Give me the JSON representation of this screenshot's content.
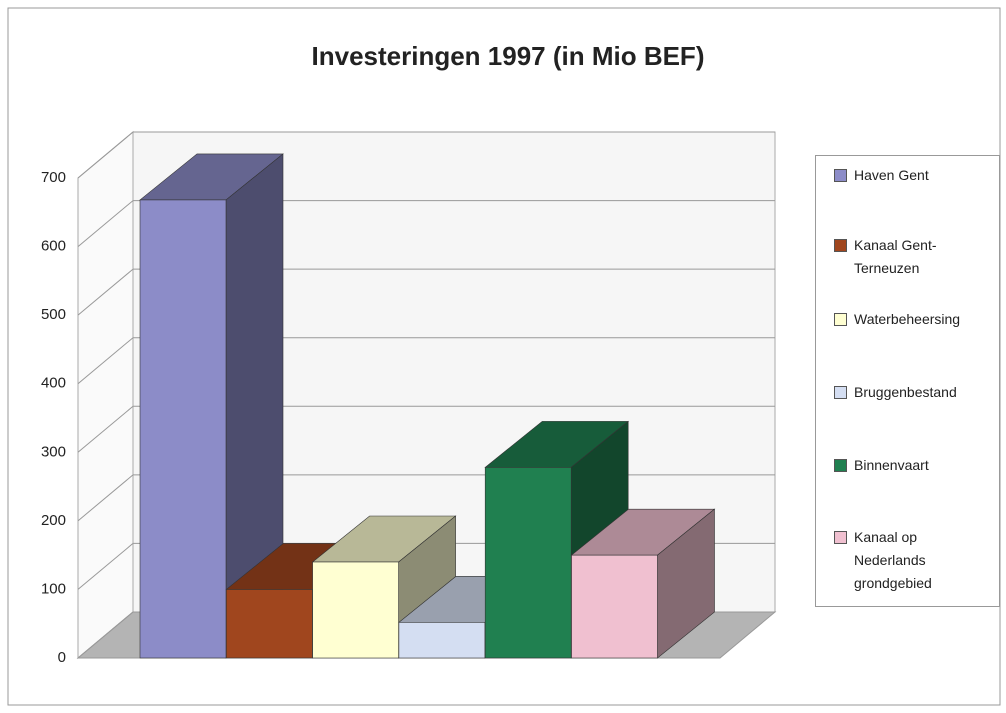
{
  "chart_data": {
    "type": "bar",
    "title": "Investeringen 1997 (in Mio BEF)",
    "series": [
      {
        "name": "Haven Gent",
        "color": "#8c8cc8",
        "values": [
          668
        ]
      },
      {
        "name": "Kanaal Gent-Terneuzen",
        "color": "#a0461e",
        "values": [
          100
        ]
      },
      {
        "name": "Waterbeheersing",
        "color": "#ffffd2",
        "values": [
          140
        ]
      },
      {
        "name": "Bruggenbestand",
        "color": "#d4def2",
        "values": [
          52
        ]
      },
      {
        "name": "Binnenvaart",
        "color": "#208050",
        "values": [
          278
        ]
      },
      {
        "name": "Kanaal op Nederlands grondgebied",
        "color": "#f0c0d0",
        "values": [
          150
        ]
      }
    ],
    "ylim": [
      0,
      700
    ],
    "yticks": [
      0,
      100,
      200,
      300,
      400,
      500,
      600,
      700
    ],
    "grid": true,
    "legend": "right"
  }
}
